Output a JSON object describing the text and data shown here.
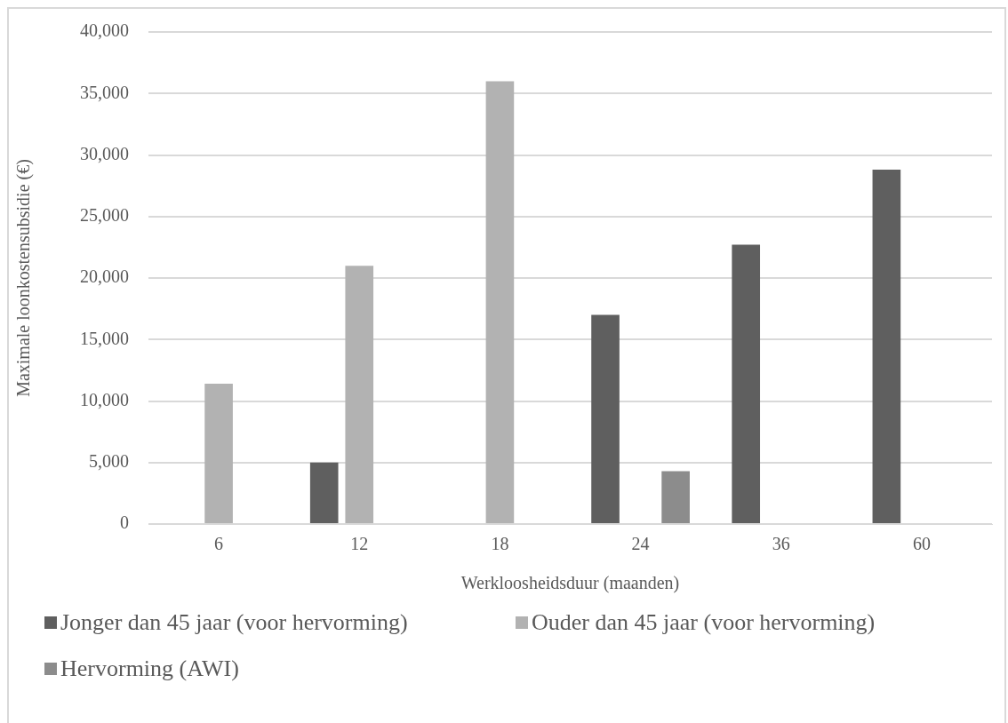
{
  "chart_data": {
    "type": "bar",
    "xlabel": "Werkloosheidsduur (maanden)",
    "ylabel": "Maximale loonkostensubsidie (€)",
    "categories": [
      "6",
      "12",
      "18",
      "24",
      "36",
      "60"
    ],
    "series": [
      {
        "name": "Jonger dan 45 jaar (voor hervorming)",
        "color": "#5f5f5f",
        "values": [
          null,
          5000,
          null,
          17000,
          22700,
          28800
        ]
      },
      {
        "name": "Ouder dan 45 jaar (voor hervorming)",
        "color": "#b2b2b2",
        "values": [
          11400,
          21000,
          36000,
          null,
          null,
          null
        ]
      },
      {
        "name": "Hervorming (AWI)",
        "color": "#8c8c8c",
        "values": [
          null,
          null,
          null,
          4300,
          null,
          null
        ]
      }
    ],
    "ylim": [
      0,
      40000
    ],
    "yticks": [
      0,
      {
        "value": 5000,
        "label": "5,000"
      },
      {
        "value": 10000,
        "label": "10,000"
      },
      {
        "value": 15000,
        "label": "15,000"
      },
      {
        "value": 20000,
        "label": "20,000"
      },
      {
        "value": 25000,
        "label": "25,000"
      },
      {
        "value": 30000,
        "label": "30,000"
      },
      {
        "value": 35000,
        "label": "35,000"
      },
      {
        "value": 40000,
        "label": "40,000"
      }
    ],
    "grid": "y",
    "legend": "bottom"
  }
}
